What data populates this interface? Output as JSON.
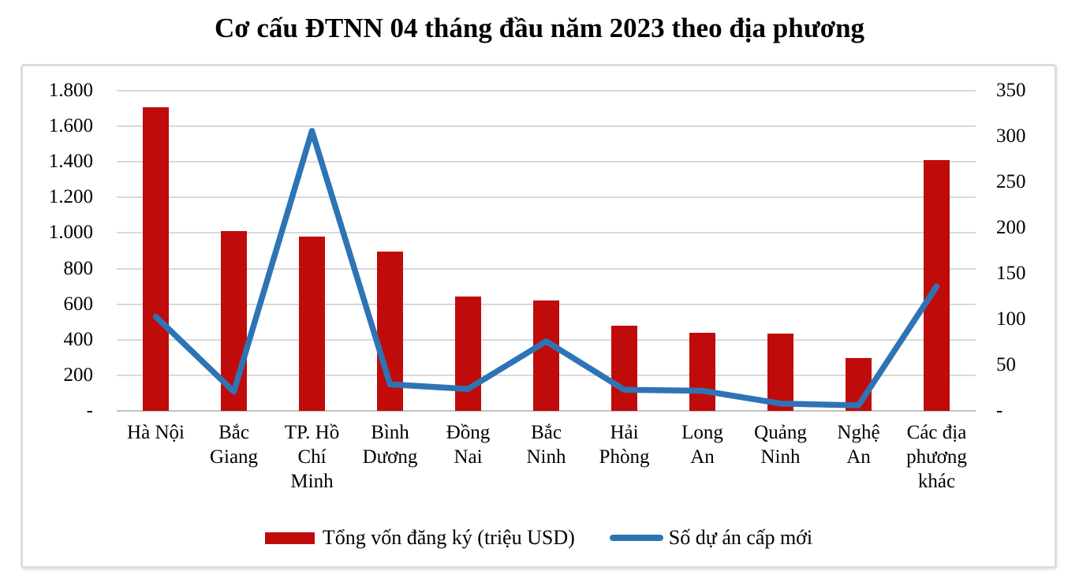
{
  "title": "Cơ cấu ĐTNN 04 tháng đầu năm 2023 theo địa phương",
  "colors": {
    "bar_red": "#c00b0b",
    "line_blue": "#2e74b5",
    "gridline": "#d9d9d9",
    "axis_line": "#c2c2c2",
    "frame_border": "#dcdcdc",
    "text": "#000000"
  },
  "chart_data": {
    "type": "bar+line combo",
    "title": "Cơ cấu ĐTNN 04 tháng đầu năm 2023 theo địa phương",
    "categories": [
      "Hà Nội",
      "Bắc Giang",
      "TP. Hồ Chí Minh",
      "Bình Dương",
      "Đồng Nai",
      "Bắc Ninh",
      "Hải Phòng",
      "Long An",
      "Quảng Ninh",
      "Nghệ An",
      "Các địa phương khác"
    ],
    "category_label_lines": [
      [
        "Hà Nội"
      ],
      [
        "Bắc",
        "Giang"
      ],
      [
        "TP. Hồ",
        "Chí",
        "Minh"
      ],
      [
        "Bình",
        "Dương"
      ],
      [
        "Đồng",
        "Nai"
      ],
      [
        "Bắc",
        "Ninh"
      ],
      [
        "Hải",
        "Phòng"
      ],
      [
        "Long",
        "An"
      ],
      [
        "Quảng",
        "Ninh"
      ],
      [
        "Nghệ",
        "An"
      ],
      [
        "Các địa",
        "phương",
        "khác"
      ]
    ],
    "series": [
      {
        "name": "Tổng vốn đăng ký (triệu  USD)",
        "type": "bar",
        "axis": "left",
        "color": "#c00b0b",
        "values": [
          1705,
          1010,
          980,
          895,
          645,
          620,
          480,
          440,
          435,
          295,
          1410
        ]
      },
      {
        "name": "Số dự án cấp mới",
        "type": "line",
        "axis": "right",
        "color": "#2e74b5",
        "values": [
          103,
          21,
          306,
          29,
          24,
          76,
          23,
          22,
          8,
          6,
          136
        ]
      }
    ],
    "left_axis": {
      "min": 0,
      "max": 1800,
      "step": 200,
      "tick_labels": [
        "-",
        "200",
        "400",
        "600",
        "800",
        "1.000",
        "1.200",
        "1.400",
        "1.600",
        "1.800"
      ]
    },
    "right_axis": {
      "min": 0,
      "max": 350,
      "step": 50,
      "tick_labels": [
        "-",
        "50",
        "100",
        "150",
        "200",
        "250",
        "300",
        "350"
      ]
    },
    "grid": true,
    "legend_position": "bottom"
  }
}
